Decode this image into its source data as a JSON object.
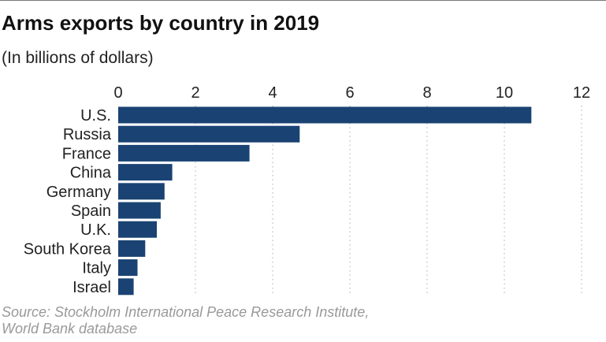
{
  "chart_data": {
    "type": "bar",
    "orientation": "horizontal",
    "title": "Arms exports by country in 2019",
    "subtitle": "(In billions of dollars)",
    "categories": [
      "U.S.",
      "Russia",
      "France",
      "China",
      "Germany",
      "Spain",
      "U.K.",
      "South Korea",
      "Italy",
      "Israel"
    ],
    "values": [
      10.7,
      4.7,
      3.4,
      1.4,
      1.2,
      1.1,
      1.0,
      0.7,
      0.5,
      0.4
    ],
    "xlim": [
      0,
      12
    ],
    "xticks": [
      "0",
      "2",
      "4",
      "6",
      "8",
      "10",
      "12"
    ],
    "xlabel": "",
    "ylabel": "",
    "grid": "vertical dotted",
    "bar_color": "#1a4373",
    "source_lines": [
      "Source: Stockholm International Peace Research Institute,",
      "World Bank database"
    ]
  }
}
